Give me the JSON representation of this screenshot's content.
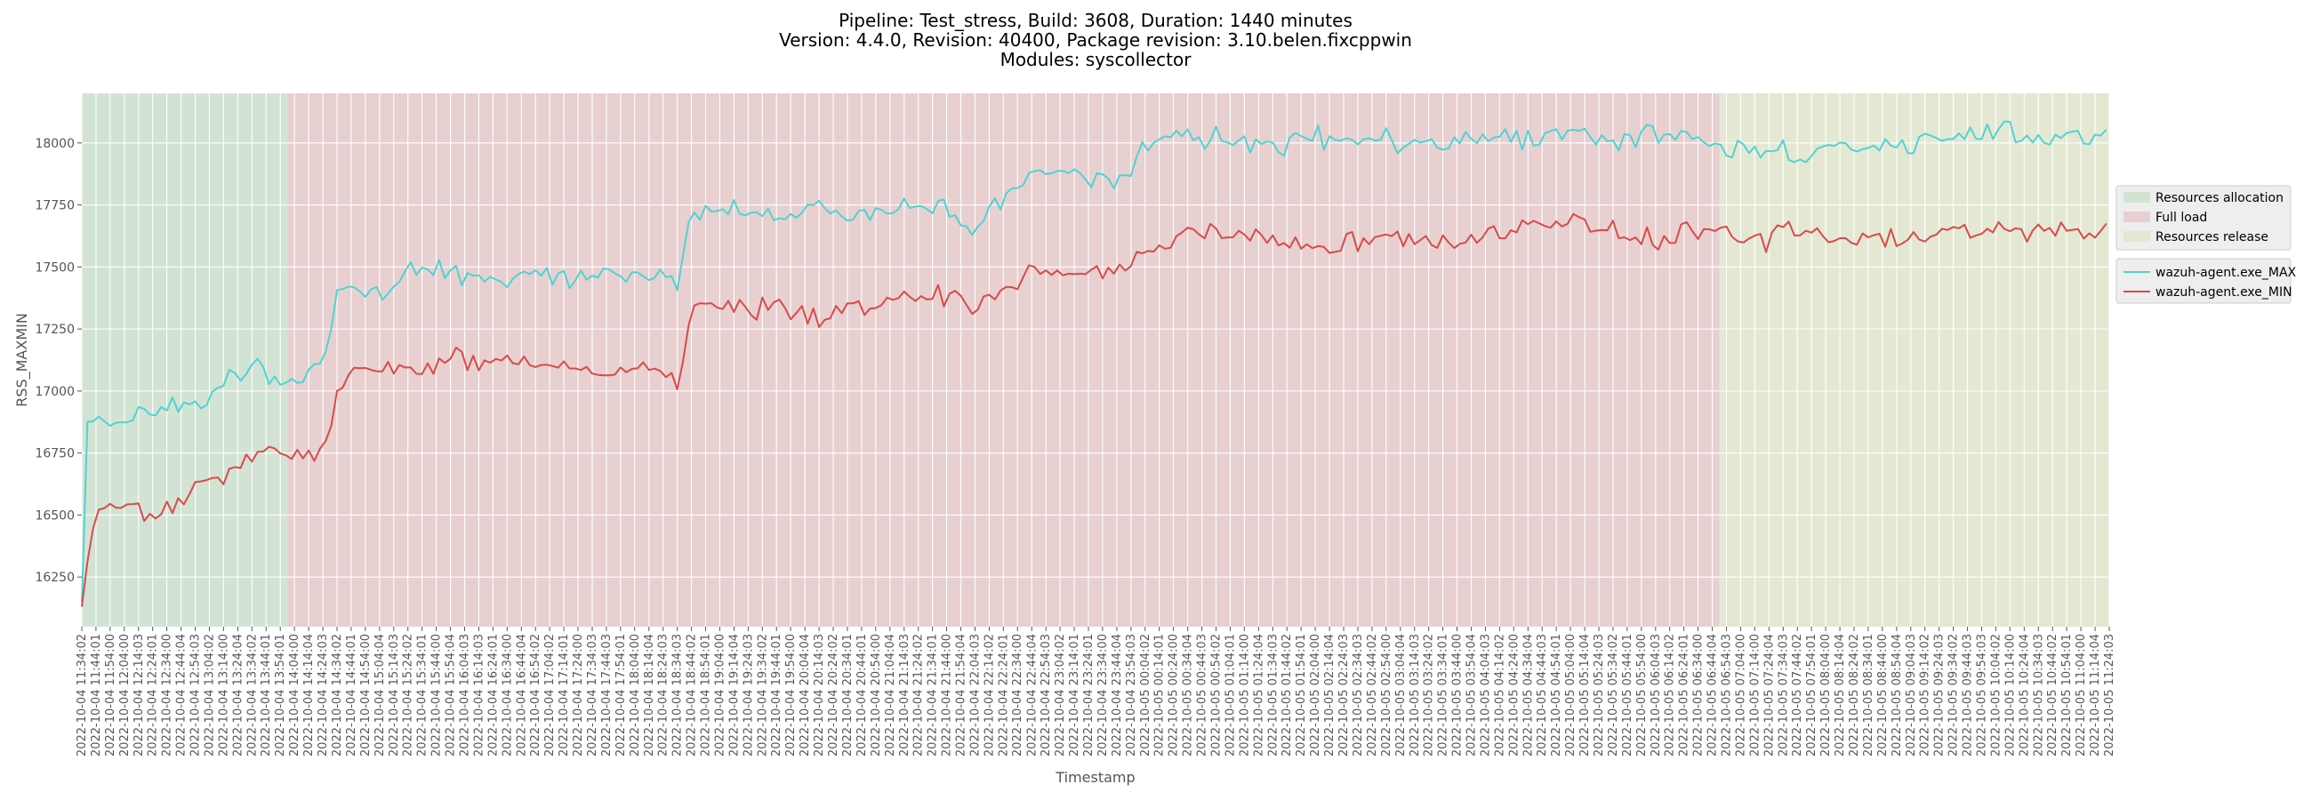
{
  "chart_data": {
    "type": "line",
    "title_lines": [
      "Pipeline: Test_stress, Build: 3608, Duration: 1440 minutes",
      "Version: 4.4.0, Revision: 40400, Package revision: 3.10.belen.fixcppwin",
      "Modules: syscollector"
    ],
    "xlabel": "Timestamp",
    "ylabel": "RSS_MAXMIN",
    "ylim": [
      16050,
      18200
    ],
    "yticks": [
      16250,
      16500,
      16750,
      17000,
      17250,
      17500,
      17750,
      18000
    ],
    "grid": true,
    "x_start": "2022-10-04 11:34:02",
    "x_end": "2022-10-05 11:24:03",
    "x_ticks": [
      "2022-10-04 11:34:02",
      "2022-10-04 11:44:01",
      "2022-10-04 11:54:00",
      "2022-10-04 12:04:00",
      "2022-10-04 12:14:03",
      "2022-10-04 12:24:01",
      "2022-10-04 12:34:00",
      "2022-10-04 12:44:04",
      "2022-10-04 12:54:03",
      "2022-10-04 13:04:02",
      "2022-10-04 13:14:00",
      "2022-10-04 13:24:04",
      "2022-10-04 13:34:02",
      "2022-10-04 13:44:01",
      "2022-10-04 13:54:01",
      "2022-10-04 14:04:00",
      "2022-10-04 14:14:04",
      "2022-10-04 14:24:03",
      "2022-10-04 14:34:02",
      "2022-10-04 14:44:01",
      "2022-10-04 14:54:00",
      "2022-10-04 15:04:04",
      "2022-10-04 15:14:03",
      "2022-10-04 15:24:02",
      "2022-10-04 15:34:01",
      "2022-10-04 15:44:00",
      "2022-10-04 15:54:04",
      "2022-10-04 16:04:03",
      "2022-10-04 16:14:03",
      "2022-10-04 16:24:01",
      "2022-10-04 16:34:00",
      "2022-10-04 16:44:04",
      "2022-10-04 16:54:02",
      "2022-10-04 17:04:02",
      "2022-10-04 17:14:01",
      "2022-10-04 17:24:00",
      "2022-10-04 17:34:03",
      "2022-10-04 17:44:03",
      "2022-10-04 17:54:01",
      "2022-10-04 18:04:00",
      "2022-10-04 18:14:04",
      "2022-10-04 18:24:03",
      "2022-10-04 18:34:03",
      "2022-10-04 18:44:02",
      "2022-10-04 18:54:01",
      "2022-10-04 19:04:00",
      "2022-10-04 19:14:04",
      "2022-10-04 19:24:03",
      "2022-10-04 19:34:02",
      "2022-10-04 19:44:01",
      "2022-10-04 19:54:00",
      "2022-10-04 20:04:04",
      "2022-10-04 20:14:03",
      "2022-10-04 20:24:02",
      "2022-10-04 20:34:01",
      "2022-10-04 20:44:01",
      "2022-10-04 20:54:00",
      "2022-10-04 21:04:04",
      "2022-10-04 21:14:03",
      "2022-10-04 21:24:02",
      "2022-10-04 21:34:01",
      "2022-10-04 21:44:00",
      "2022-10-04 21:54:04",
      "2022-10-04 22:04:03",
      "2022-10-04 22:14:02",
      "2022-10-04 22:24:01",
      "2022-10-04 22:34:00",
      "2022-10-04 22:44:04",
      "2022-10-04 22:54:03",
      "2022-10-04 23:04:02",
      "2022-10-04 23:14:01",
      "2022-10-04 23:24:01",
      "2022-10-04 23:34:00",
      "2022-10-04 23:44:04",
      "2022-10-04 23:54:03",
      "2022-10-05 00:04:02",
      "2022-10-05 00:14:01",
      "2022-10-05 00:24:00",
      "2022-10-05 00:34:04",
      "2022-10-05 00:44:03",
      "2022-10-05 00:54:02",
      "2022-10-05 01:04:01",
      "2022-10-05 01:14:00",
      "2022-10-05 01:24:04",
      "2022-10-05 01:34:03",
      "2022-10-05 01:44:02",
      "2022-10-05 01:54:01",
      "2022-10-05 02:04:00",
      "2022-10-05 02:14:04",
      "2022-10-05 02:24:03",
      "2022-10-05 02:34:03",
      "2022-10-05 02:44:02",
      "2022-10-05 02:54:00",
      "2022-10-05 03:04:04",
      "2022-10-05 03:14:03",
      "2022-10-05 03:24:02",
      "2022-10-05 03:34:01",
      "2022-10-05 03:44:00",
      "2022-10-05 03:54:04",
      "2022-10-05 04:04:03",
      "2022-10-05 04:14:02",
      "2022-10-05 04:24:00",
      "2022-10-05 04:34:04",
      "2022-10-05 04:44:03",
      "2022-10-05 04:54:01",
      "2022-10-05 05:04:00",
      "2022-10-05 05:14:04",
      "2022-10-05 05:24:03",
      "2022-10-05 05:34:02",
      "2022-10-05 05:44:01",
      "2022-10-05 05:54:00",
      "2022-10-05 06:04:03",
      "2022-10-05 06:14:02",
      "2022-10-05 06:24:01",
      "2022-10-05 06:34:00",
      "2022-10-05 06:44:04",
      "2022-10-05 06:54:03",
      "2022-10-05 07:04:00",
      "2022-10-05 07:14:00",
      "2022-10-05 07:24:04",
      "2022-10-05 07:34:03",
      "2022-10-05 07:44:02",
      "2022-10-05 07:54:01",
      "2022-10-05 08:04:00",
      "2022-10-05 08:14:04",
      "2022-10-05 08:24:02",
      "2022-10-05 08:34:01",
      "2022-10-05 08:44:00",
      "2022-10-05 08:54:04",
      "2022-10-05 09:04:03",
      "2022-10-05 09:14:02",
      "2022-10-05 09:24:03",
      "2022-10-05 09:34:02",
      "2022-10-05 09:44:03",
      "2022-10-05 09:54:03",
      "2022-10-05 10:04:02",
      "2022-10-05 10:14:00",
      "2022-10-05 10:24:04",
      "2022-10-05 10:34:03",
      "2022-10-05 10:44:02",
      "2022-10-05 10:54:01",
      "2022-10-05 11:04:00",
      "2022-10-05 11:14:04",
      "2022-10-05 11:24:03"
    ],
    "phases": [
      {
        "name": "Resources allocation",
        "start": "2022-10-04 11:34:02",
        "end": "2022-10-04 13:59:00",
        "color": "#d3e3d3"
      },
      {
        "name": "Full load",
        "start": "2022-10-04 13:59:00",
        "end": "2022-10-05 06:49:00",
        "color": "#e8d0d0"
      },
      {
        "name": "Resources release",
        "start": "2022-10-05 06:49:00",
        "end": "2022-10-05 11:26:00",
        "color": "#e4e8d3"
      }
    ],
    "series": [
      {
        "name": "wazuh-agent.exe_MAX",
        "color": "#4fd3d3",
        "keypoints": [
          [
            "2022-10-04 11:34:02",
            16150
          ],
          [
            "2022-10-04 11:36:00",
            16880
          ],
          [
            "2022-10-04 11:54:00",
            16850
          ],
          [
            "2022-10-04 12:14:03",
            16920
          ],
          [
            "2022-10-04 12:34:00",
            16940
          ],
          [
            "2022-10-04 12:54:03",
            16960
          ],
          [
            "2022-10-04 13:14:00",
            17040
          ],
          [
            "2022-10-04 13:34:02",
            17100
          ],
          [
            "2022-10-04 13:54:01",
            17030
          ],
          [
            "2022-10-04 14:14:04",
            17060
          ],
          [
            "2022-10-04 14:24:03",
            17110
          ],
          [
            "2022-10-04 14:34:02",
            17380
          ],
          [
            "2022-10-04 14:44:01",
            17420
          ],
          [
            "2022-10-04 15:04:04",
            17400
          ],
          [
            "2022-10-04 15:24:02",
            17490
          ],
          [
            "2022-10-04 15:54:04",
            17480
          ],
          [
            "2022-10-04 16:24:01",
            17460
          ],
          [
            "2022-10-04 16:44:04",
            17470
          ],
          [
            "2022-10-04 17:14:01",
            17450
          ],
          [
            "2022-10-04 17:44:03",
            17470
          ],
          [
            "2022-10-04 18:14:04",
            17460
          ],
          [
            "2022-10-04 18:34:03",
            17420
          ],
          [
            "2022-10-04 18:44:02",
            17720
          ],
          [
            "2022-10-04 19:14:04",
            17730
          ],
          [
            "2022-10-04 19:44:01",
            17700
          ],
          [
            "2022-10-04 20:14:03",
            17740
          ],
          [
            "2022-10-04 20:44:01",
            17710
          ],
          [
            "2022-10-04 21:14:03",
            17750
          ],
          [
            "2022-10-04 21:44:00",
            17720
          ],
          [
            "2022-10-04 22:04:03",
            17650
          ],
          [
            "2022-10-04 22:24:01",
            17780
          ],
          [
            "2022-10-04 22:44:04",
            17860
          ],
          [
            "2022-10-04 23:04:02",
            17880
          ],
          [
            "2022-10-04 23:24:01",
            17860
          ],
          [
            "2022-10-04 23:44:04",
            17820
          ],
          [
            "2022-10-05 00:04:02",
            17990
          ],
          [
            "2022-10-05 00:34:04",
            18020
          ],
          [
            "2022-10-05 01:04:01",
            18010
          ],
          [
            "2022-10-05 01:34:03",
            17970
          ],
          [
            "2022-10-05 02:04:00",
            18020
          ],
          [
            "2022-10-05 02:34:03",
            18000
          ],
          [
            "2022-10-05 03:04:04",
            18010
          ],
          [
            "2022-10-05 03:34:01",
            18000
          ],
          [
            "2022-10-05 04:04:03",
            18030
          ],
          [
            "2022-10-05 04:34:04",
            18010
          ],
          [
            "2022-10-05 05:04:00",
            18040
          ],
          [
            "2022-10-05 05:34:02",
            18010
          ],
          [
            "2022-10-05 06:04:03",
            18030
          ],
          [
            "2022-10-05 06:34:00",
            18030
          ],
          [
            "2022-10-05 06:54:03",
            17960
          ],
          [
            "2022-10-05 07:24:04",
            17980
          ],
          [
            "2022-10-05 07:44:02",
            17950
          ],
          [
            "2022-10-05 08:14:04",
            17990
          ],
          [
            "2022-10-05 08:44:00",
            17980
          ],
          [
            "2022-10-05 09:14:02",
            18020
          ],
          [
            "2022-10-05 09:44:03",
            18030
          ],
          [
            "2022-10-05 10:14:00",
            18040
          ],
          [
            "2022-10-05 10:44:02",
            18010
          ],
          [
            "2022-10-05 11:04:00",
            18030
          ],
          [
            "2022-10-05 11:24:03",
            18050
          ]
        ]
      },
      {
        "name": "wazuh-agent.exe_MIN",
        "color": "#d94a4a",
        "keypoints": [
          [
            "2022-10-04 11:34:02",
            16130
          ],
          [
            "2022-10-04 11:36:00",
            16130
          ],
          [
            "2022-10-04 11:40:00",
            16490
          ],
          [
            "2022-10-04 12:04:00",
            16560
          ],
          [
            "2022-10-04 12:24:01",
            16490
          ],
          [
            "2022-10-04 12:44:04",
            16560
          ],
          [
            "2022-10-04 13:04:02",
            16620
          ],
          [
            "2022-10-04 13:24:04",
            16720
          ],
          [
            "2022-10-04 13:44:01",
            16760
          ],
          [
            "2022-10-04 14:04:00",
            16740
          ],
          [
            "2022-10-04 14:24:03",
            16740
          ],
          [
            "2022-10-04 14:34:02",
            16980
          ],
          [
            "2022-10-04 14:44:01",
            17080
          ],
          [
            "2022-10-04 15:04:04",
            17060
          ],
          [
            "2022-10-04 15:34:01",
            17100
          ],
          [
            "2022-10-04 16:04:03",
            17130
          ],
          [
            "2022-10-04 16:34:00",
            17110
          ],
          [
            "2022-10-04 17:04:02",
            17100
          ],
          [
            "2022-10-04 17:34:03",
            17090
          ],
          [
            "2022-10-04 18:04:00",
            17110
          ],
          [
            "2022-10-04 18:34:03",
            17020
          ],
          [
            "2022-10-04 18:44:02",
            17340
          ],
          [
            "2022-10-04 19:14:04",
            17330
          ],
          [
            "2022-10-04 19:44:01",
            17330
          ],
          [
            "2022-10-04 20:14:03",
            17300
          ],
          [
            "2022-10-04 20:44:01",
            17350
          ],
          [
            "2022-10-04 21:14:03",
            17370
          ],
          [
            "2022-10-04 21:44:00",
            17380
          ],
          [
            "2022-10-04 22:04:03",
            17300
          ],
          [
            "2022-10-04 22:24:01",
            17420
          ],
          [
            "2022-10-04 22:44:04",
            17480
          ],
          [
            "2022-10-04 23:04:02",
            17490
          ],
          [
            "2022-10-04 23:24:01",
            17460
          ],
          [
            "2022-10-04 23:44:04",
            17490
          ],
          [
            "2022-10-05 00:04:02",
            17580
          ],
          [
            "2022-10-05 00:34:04",
            17640
          ],
          [
            "2022-10-05 01:04:01",
            17650
          ],
          [
            "2022-10-05 01:34:03",
            17620
          ],
          [
            "2022-10-05 02:04:00",
            17580
          ],
          [
            "2022-10-05 02:34:03",
            17610
          ],
          [
            "2022-10-05 03:04:04",
            17630
          ],
          [
            "2022-10-05 03:34:01",
            17600
          ],
          [
            "2022-10-05 04:04:03",
            17640
          ],
          [
            "2022-10-05 04:34:04",
            17660
          ],
          [
            "2022-10-05 05:04:00",
            17700
          ],
          [
            "2022-10-05 05:34:02",
            17640
          ],
          [
            "2022-10-05 06:04:03",
            17600
          ],
          [
            "2022-10-05 06:34:00",
            17660
          ],
          [
            "2022-10-05 06:54:03",
            17650
          ],
          [
            "2022-10-05 07:14:00",
            17580
          ],
          [
            "2022-10-05 07:34:03",
            17660
          ],
          [
            "2022-10-05 07:54:01",
            17620
          ],
          [
            "2022-10-05 08:24:02",
            17600
          ],
          [
            "2022-10-05 08:54:04",
            17620
          ],
          [
            "2022-10-05 09:24:03",
            17640
          ],
          [
            "2022-10-05 09:54:03",
            17640
          ],
          [
            "2022-10-05 10:24:04",
            17650
          ],
          [
            "2022-10-05 10:54:01",
            17640
          ],
          [
            "2022-10-05 11:14:04",
            17620
          ],
          [
            "2022-10-05 11:24:03",
            17680
          ]
        ]
      }
    ],
    "legend": {
      "placement": "right",
      "phase_entries": [
        "Resources allocation",
        "Full load",
        "Resources release"
      ],
      "series_entries": [
        "wazuh-agent.exe_MAX",
        "wazuh-agent.exe_MIN"
      ]
    }
  }
}
